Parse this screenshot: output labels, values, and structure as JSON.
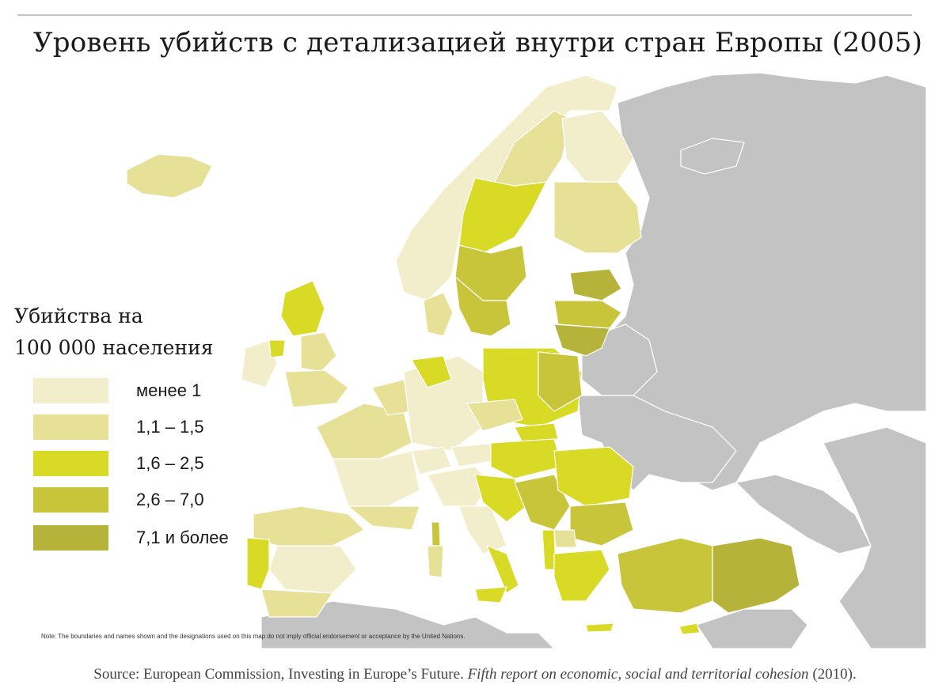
{
  "title": "Уровень убийств с детализацией внутри стран Европы (2005)",
  "legend": {
    "title_line1": "Убийства на",
    "title_line2": "100 000 населения",
    "items": [
      {
        "label": "менее 1",
        "color": "#f2eecb"
      },
      {
        "label": "1,1 – 1,5",
        "color": "#e6e197"
      },
      {
        "label": "1,6 – 2,5",
        "color": "#d9da26"
      },
      {
        "label": "2,6 – 7,0",
        "color": "#c8c53a"
      },
      {
        "label": "7,1 и более",
        "color": "#b5b33a"
      }
    ]
  },
  "note": "Note: The boundaries and names shown and the designations used on this map do not imply official endorsement or acceptance by the United Nations.",
  "source": {
    "prefix": "Source: European Commission, Investing in Europe’s Future.",
    "italic": "Fifth report on economic, social and territorial cohesion",
    "suffix": "(2010)."
  },
  "colors": {
    "no_data_land": "#c3c3c3",
    "sea": "#ffffff",
    "borders": "#ffffff"
  }
}
